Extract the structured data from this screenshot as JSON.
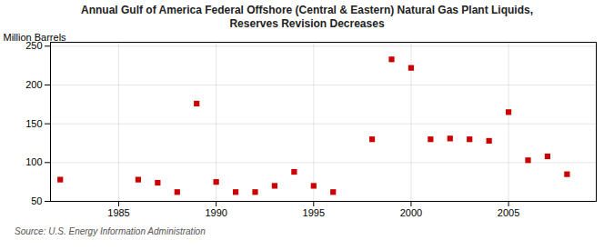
{
  "chart_data": {
    "type": "scatter",
    "title": "Annual Gulf of America Federal Offshore (Central & Eastern) Natural Gas Plant Liquids,\nReserves Revision Decreases",
    "ylabel": "Million Barrels",
    "source": "Source: U.S. Energy Information Administration",
    "x": [
      1982,
      1986,
      1987,
      1988,
      1989,
      1990,
      1991,
      1992,
      1993,
      1994,
      1995,
      1996,
      1998,
      1999,
      2000,
      2001,
      2002,
      2003,
      2004,
      2005,
      2006,
      2007,
      2008
    ],
    "values": [
      78,
      78,
      74,
      62,
      176,
      75,
      62,
      62,
      70,
      88,
      70,
      62,
      130,
      233,
      222,
      130,
      131,
      130,
      128,
      165,
      103,
      108,
      85
    ],
    "color": "#cc0000",
    "marker": "square",
    "xlim": [
      1981.5,
      2009.5
    ],
    "xticks": [
      1985,
      1990,
      1995,
      2000,
      2005
    ],
    "ylim": [
      50,
      255
    ],
    "yticks": [
      50,
      100,
      150,
      200,
      250
    ],
    "grid": true
  }
}
